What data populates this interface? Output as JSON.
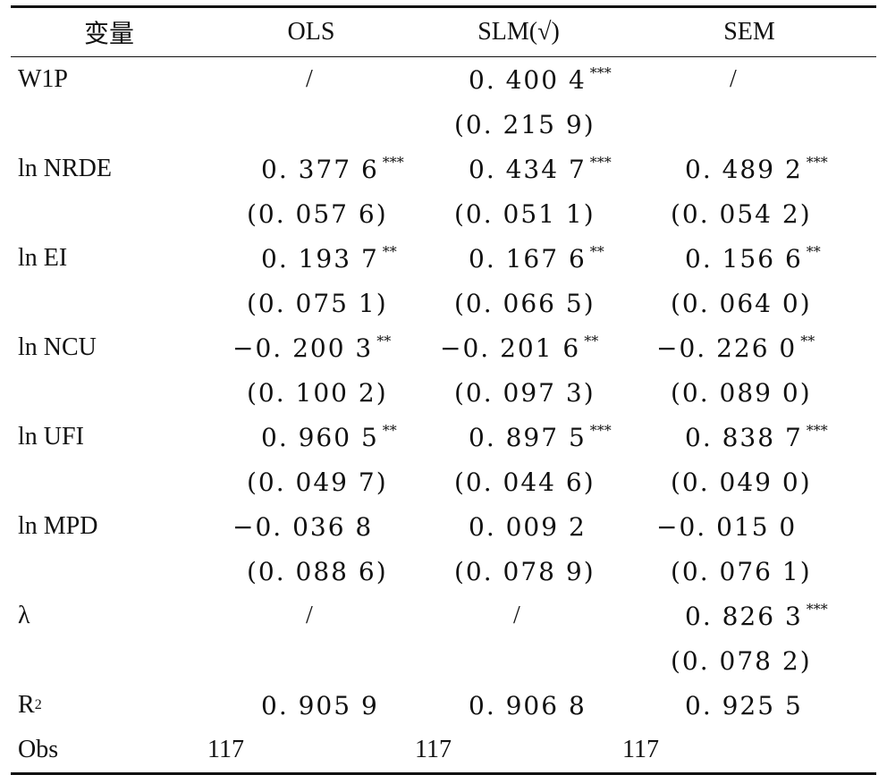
{
  "headers": [
    "变量",
    "OLS",
    "SLM(√)",
    "SEM"
  ],
  "rows": [
    {
      "label": "W1P",
      "cells": [
        {
          "t": "slash",
          "v": "/"
        },
        {
          "t": "num",
          "v": "0. 400 4",
          "s": "***"
        },
        {
          "t": "slash",
          "v": "/"
        }
      ]
    },
    {
      "label": "",
      "cells": [
        {
          "t": "empty",
          "v": ""
        },
        {
          "t": "paren",
          "v": "(0. 215 9)"
        },
        {
          "t": "empty",
          "v": ""
        }
      ]
    },
    {
      "label": "ln NRDE",
      "cells": [
        {
          "t": "num",
          "v": "0. 377 6",
          "s": "***"
        },
        {
          "t": "num",
          "v": "0. 434 7",
          "s": "***"
        },
        {
          "t": "num",
          "v": "0. 489 2",
          "s": "***"
        }
      ]
    },
    {
      "label": "",
      "cells": [
        {
          "t": "paren",
          "v": "(0. 057 6)"
        },
        {
          "t": "paren",
          "v": "(0. 051 1)"
        },
        {
          "t": "paren",
          "v": "(0. 054 2)"
        }
      ]
    },
    {
      "label": "ln EI",
      "cells": [
        {
          "t": "num",
          "v": "0. 193 7",
          "s": "**"
        },
        {
          "t": "num",
          "v": "0. 167 6",
          "s": "**"
        },
        {
          "t": "num",
          "v": "0. 156 6",
          "s": "**"
        }
      ]
    },
    {
      "label": "",
      "cells": [
        {
          "t": "paren",
          "v": "(0. 075 1)"
        },
        {
          "t": "paren",
          "v": "(0. 066 5)"
        },
        {
          "t": "paren",
          "v": "(0. 064 0)"
        }
      ]
    },
    {
      "label": "ln NCU",
      "cells": [
        {
          "t": "neg",
          "v": "−0. 200 3",
          "s": "**"
        },
        {
          "t": "neg",
          "v": "−0. 201 6",
          "s": "**"
        },
        {
          "t": "neg",
          "v": "−0. 226 0",
          "s": "**"
        }
      ]
    },
    {
      "label": "",
      "cells": [
        {
          "t": "paren",
          "v": "(0. 100 2)"
        },
        {
          "t": "paren",
          "v": "(0. 097 3)"
        },
        {
          "t": "paren",
          "v": "(0. 089 0)"
        }
      ]
    },
    {
      "label": "ln UFI",
      "cells": [
        {
          "t": "num",
          "v": "0. 960 5",
          "s": "**"
        },
        {
          "t": "num",
          "v": "0. 897 5",
          "s": "***"
        },
        {
          "t": "num",
          "v": "0. 838 7",
          "s": "***"
        }
      ]
    },
    {
      "label": "",
      "cells": [
        {
          "t": "paren",
          "v": "(0. 049 7)"
        },
        {
          "t": "paren",
          "v": "(0. 044 6)"
        },
        {
          "t": "paren",
          "v": "(0. 049 0)"
        }
      ]
    },
    {
      "label": "ln MPD",
      "cells": [
        {
          "t": "neg",
          "v": "−0. 036 8"
        },
        {
          "t": "num",
          "v": "0. 009 2"
        },
        {
          "t": "neg",
          "v": "−0. 015 0"
        }
      ]
    },
    {
      "label": "",
      "cells": [
        {
          "t": "paren",
          "v": "(0. 088 6)"
        },
        {
          "t": "paren",
          "v": "(0. 078 9)"
        },
        {
          "t": "paren",
          "v": "(0. 076 1)"
        }
      ]
    },
    {
      "label": "λ",
      "cells": [
        {
          "t": "slash",
          "v": "/"
        },
        {
          "t": "slash",
          "v": "/"
        },
        {
          "t": "num",
          "v": "0. 826 3",
          "s": "***"
        }
      ]
    },
    {
      "label": "",
      "cells": [
        {
          "t": "empty",
          "v": ""
        },
        {
          "t": "empty",
          "v": ""
        },
        {
          "t": "paren",
          "v": "(0. 078 2)"
        }
      ]
    },
    {
      "label": "R",
      "label_sup": "2",
      "cells": [
        {
          "t": "num",
          "v": "0. 905 9"
        },
        {
          "t": "num",
          "v": "0. 906 8"
        },
        {
          "t": "num",
          "v": "0. 925 5"
        }
      ]
    },
    {
      "label": "Obs",
      "cells": [
        {
          "t": "obs",
          "v": "117"
        },
        {
          "t": "obs",
          "v": "117"
        },
        {
          "t": "obs",
          "v": "117"
        }
      ]
    }
  ]
}
